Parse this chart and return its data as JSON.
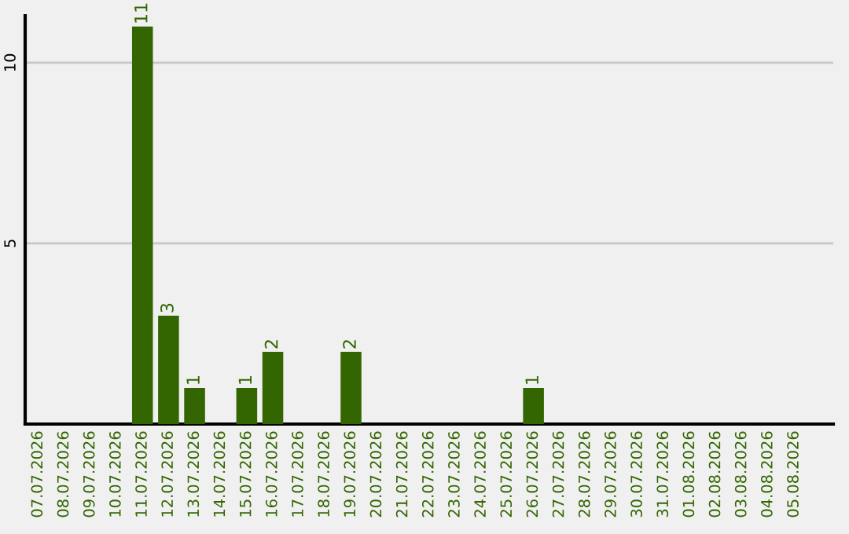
{
  "chart_data": {
    "type": "bar",
    "categories": [
      "07.07.2026",
      "08.07.2026",
      "09.07.2026",
      "10.07.2026",
      "11.07.2026",
      "12.07.2026",
      "13.07.2026",
      "14.07.2026",
      "15.07.2026",
      "16.07.2026",
      "17.07.2026",
      "18.07.2026",
      "19.07.2026",
      "20.07.2026",
      "21.07.2026",
      "22.07.2026",
      "23.07.2026",
      "24.07.2026",
      "25.07.2026",
      "26.07.2026",
      "27.07.2026",
      "28.07.2026",
      "29.07.2026",
      "30.07.2026",
      "31.07.2026",
      "01.08.2026",
      "02.08.2026",
      "03.08.2026",
      "04.08.2026",
      "05.08.2026"
    ],
    "values": [
      0,
      0,
      0,
      0,
      11,
      3,
      1,
      0,
      1,
      2,
      0,
      0,
      2,
      0,
      0,
      0,
      0,
      0,
      0,
      1,
      0,
      0,
      0,
      0,
      0,
      0,
      0,
      0,
      0,
      0
    ],
    "value_labels": [
      null,
      null,
      null,
      null,
      "11",
      "3",
      "1",
      null,
      "1",
      "2",
      null,
      null,
      "2",
      null,
      null,
      null,
      null,
      null,
      null,
      "1",
      null,
      null,
      null,
      null,
      null,
      null,
      null,
      null,
      null,
      null
    ],
    "color": "#336600",
    "ylim": [
      0,
      11.3
    ],
    "yticks": [
      5,
      10
    ],
    "grid": "y"
  }
}
